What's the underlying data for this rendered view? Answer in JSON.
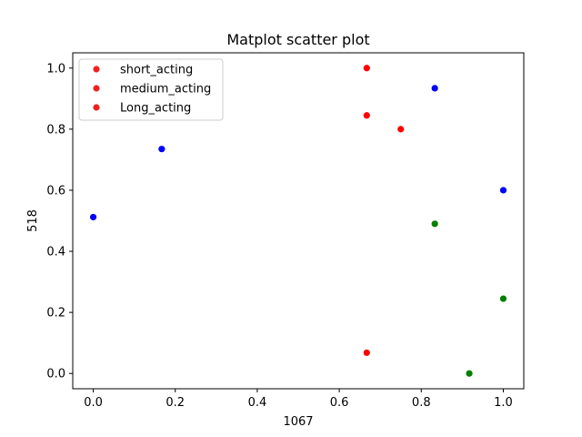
{
  "chart_data": {
    "type": "scatter",
    "title": "Matplot scatter plot",
    "xlabel": "1067",
    "ylabel": "518",
    "xlim": [
      -0.05,
      1.05
    ],
    "ylim": [
      -0.05,
      1.05
    ],
    "xticks": [
      "0.0",
      "0.2",
      "0.4",
      "0.6",
      "0.8",
      "1.0"
    ],
    "yticks": [
      "0.0",
      "0.2",
      "0.4",
      "0.6",
      "0.8",
      "1.0"
    ],
    "grid": false,
    "legend_position": "top-left",
    "legend": [
      {
        "label": "short_acting",
        "color": "#ee2222"
      },
      {
        "label": "medium_acting",
        "color": "#ee2222"
      },
      {
        "label": "Long_acting",
        "color": "#ee2222"
      }
    ],
    "series": [
      {
        "color": "#0000ff",
        "points": [
          [
            0.0,
            0.512
          ],
          [
            0.167,
            0.735
          ],
          [
            0.833,
            0.934
          ],
          [
            1.0,
            0.6
          ]
        ]
      },
      {
        "color": "#ff0000",
        "points": [
          [
            0.667,
            1.0
          ],
          [
            0.667,
            0.845
          ],
          [
            0.75,
            0.8
          ],
          [
            0.667,
            0.068
          ]
        ]
      },
      {
        "color": "#008000",
        "points": [
          [
            0.833,
            0.49
          ],
          [
            1.0,
            0.245
          ],
          [
            0.917,
            0.0
          ]
        ]
      }
    ]
  }
}
